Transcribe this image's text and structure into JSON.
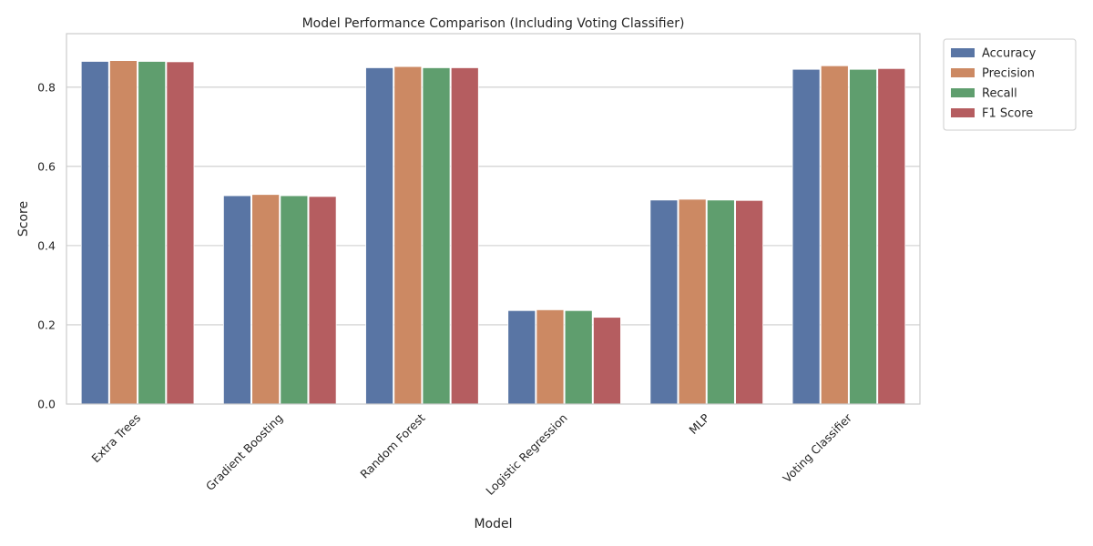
{
  "chart_data": {
    "type": "bar",
    "title": "Model Performance Comparison (Including Voting Classifier)",
    "xlabel": "Model",
    "ylabel": "Score",
    "ylim": [
      0,
      0.935
    ],
    "yticks": [
      "0.0",
      "0.2",
      "0.4",
      "0.6",
      "0.8"
    ],
    "grid": "horizontal",
    "legend_position": "outside-top-right",
    "categories": [
      "Extra Trees",
      "Gradient Boosting",
      "Random Forest",
      "Logistic Regression",
      "MLP",
      "Voting Classifier"
    ],
    "series": [
      {
        "name": "Accuracy",
        "color": "#5975a4",
        "values": [
          0.865,
          0.526,
          0.849,
          0.236,
          0.515,
          0.845
        ]
      },
      {
        "name": "Precision",
        "color": "#cc8963",
        "values": [
          0.867,
          0.529,
          0.852,
          0.238,
          0.517,
          0.854
        ]
      },
      {
        "name": "Recall",
        "color": "#5f9e6e",
        "values": [
          0.865,
          0.526,
          0.849,
          0.236,
          0.515,
          0.845
        ]
      },
      {
        "name": "F1 Score",
        "color": "#b55d60",
        "values": [
          0.864,
          0.524,
          0.849,
          0.219,
          0.514,
          0.847
        ]
      }
    ]
  }
}
